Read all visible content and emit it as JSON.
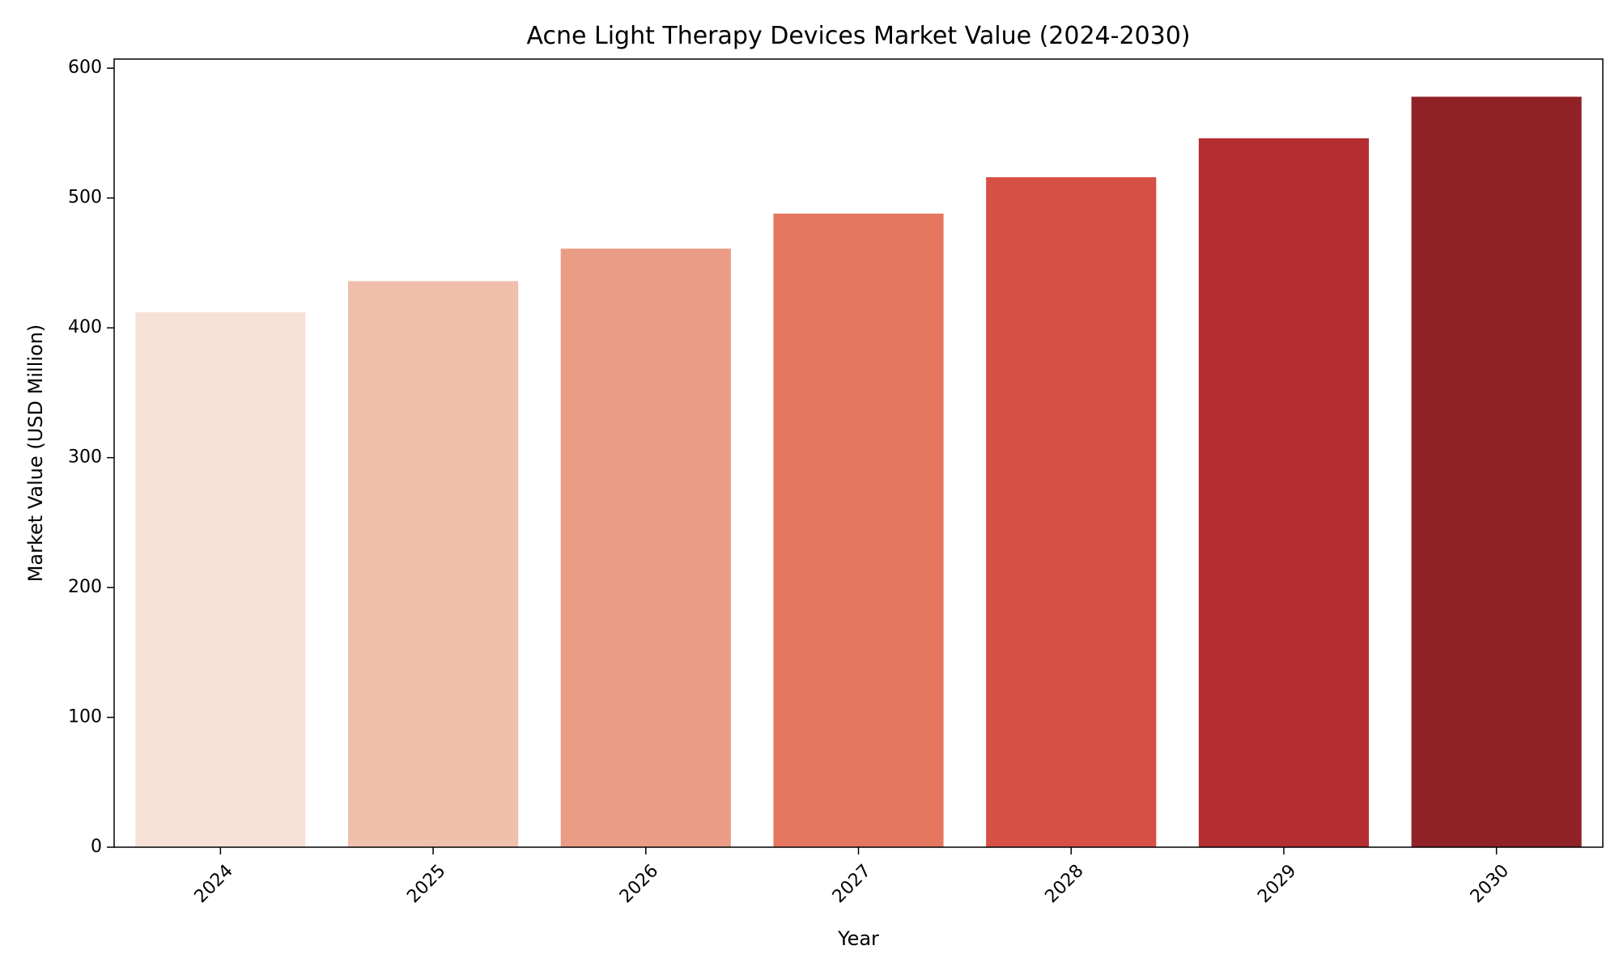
{
  "chart_data": {
    "type": "bar",
    "title": "Acne Light Therapy Devices Market Value (2024-2030)",
    "xlabel": "Year",
    "ylabel": "Market Value (USD Million)",
    "categories": [
      "2024",
      "2025",
      "2026",
      "2027",
      "2028",
      "2029",
      "2030"
    ],
    "values": [
      412,
      436,
      461,
      488,
      516,
      546,
      578
    ],
    "ylim": [
      0,
      607
    ],
    "yticks": [
      0,
      100,
      200,
      300,
      400,
      500,
      600
    ],
    "grid": false,
    "legend": "none",
    "bar_colors": [
      "#f8e1d7",
      "#f0c0ad",
      "#eb9c85",
      "#e57761",
      "#d65046",
      "#b42d31",
      "#902127"
    ]
  }
}
